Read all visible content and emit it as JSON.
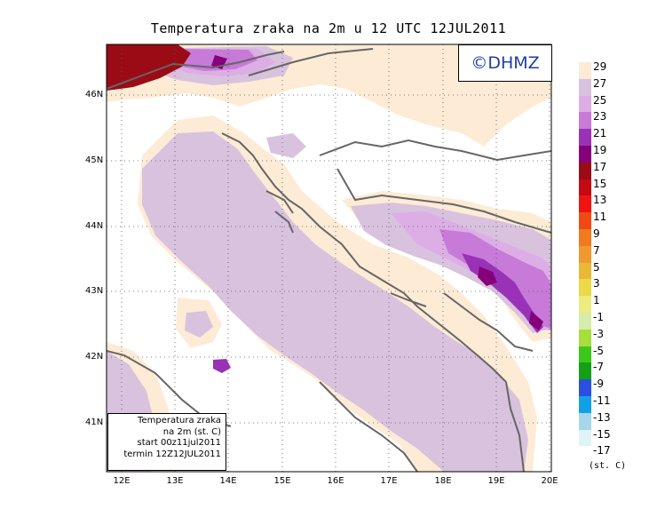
{
  "title": "Temperatura zraka na 2m u 12 UTC 12JUL2011",
  "copyright": "©DHMZ",
  "info_box": [
    "Temperatura zraka",
    "na 2m (st. C)",
    "start 00z11jul2011",
    "termin 12Z12JUL2011"
  ],
  "lat_labels": [
    "46N",
    "45N",
    "44N",
    "43N",
    "42N",
    "41N"
  ],
  "lon_labels": [
    "12E",
    "13E",
    "14E",
    "15E",
    "16E",
    "17E",
    "18E",
    "19E",
    "20E"
  ],
  "legend": {
    "unit": "(st. C)",
    "levels": [
      {
        "label": "29",
        "color": "#fdebd6"
      },
      {
        "label": "27",
        "color": "#d8c2de"
      },
      {
        "label": "25",
        "color": "#ddaee6"
      },
      {
        "label": "23",
        "color": "#c77ad8"
      },
      {
        "label": "21",
        "color": "#9a32b8"
      },
      {
        "label": "19",
        "color": "#86007a"
      },
      {
        "label": "17",
        "color": "#9a0b16"
      },
      {
        "label": "15",
        "color": "#c40a12"
      },
      {
        "label": "13",
        "color": "#f01410"
      },
      {
        "label": "11",
        "color": "#f04a14"
      },
      {
        "label": "9",
        "color": "#f07a1e"
      },
      {
        "label": "7",
        "color": "#ef9a30"
      },
      {
        "label": "5",
        "color": "#eab838"
      },
      {
        "label": "3",
        "color": "#ecd848"
      },
      {
        "label": "1",
        "color": "#ecec80"
      },
      {
        "label": "-1",
        "color": "#d6ecaa"
      },
      {
        "label": "-3",
        "color": "#a6de3c"
      },
      {
        "label": "-5",
        "color": "#3cc81a"
      },
      {
        "label": "-7",
        "color": "#14a014"
      },
      {
        "label": "-9",
        "color": "#2a50e0"
      },
      {
        "label": "-11",
        "color": "#14a0e6"
      },
      {
        "label": "-13",
        "color": "#a6d6ea"
      },
      {
        "label": "-15",
        "color": "#def4f6"
      },
      {
        "label": "-17",
        "color": "#ffffff"
      }
    ]
  }
}
